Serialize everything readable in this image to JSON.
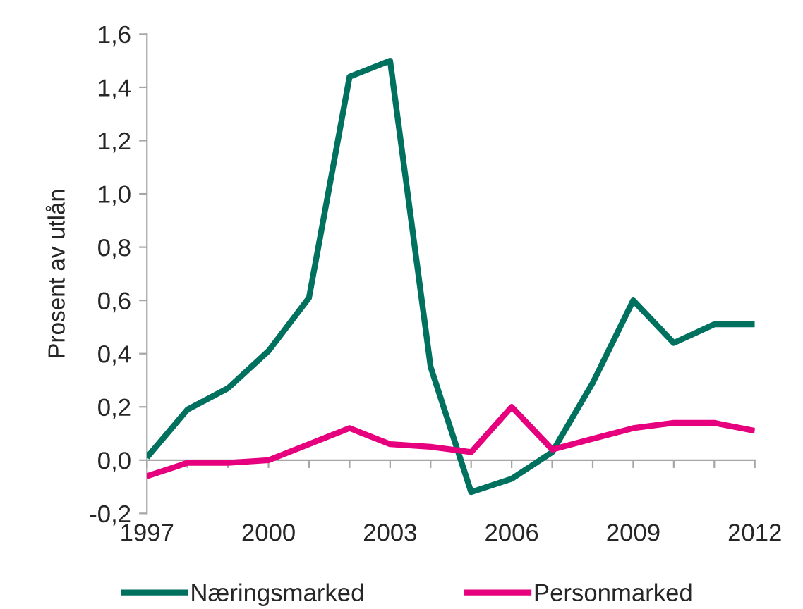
{
  "chart_data": {
    "type": "line",
    "ylabel": "Prosent av utlån",
    "x": [
      1997,
      1998,
      1999,
      2000,
      2001,
      2002,
      2003,
      2004,
      2005,
      2006,
      2007,
      2008,
      2009,
      2010,
      2011,
      2012
    ],
    "xlim": [
      1997,
      2012
    ],
    "xticks": [
      1997,
      {
        "value": 1998,
        "label": null
      },
      {
        "value": 1999,
        "label": null
      },
      2000,
      {
        "value": 2001,
        "label": null
      },
      {
        "value": 2002,
        "label": null
      },
      2003,
      {
        "value": 2004,
        "label": null
      },
      {
        "value": 2005,
        "label": null
      },
      2006,
      {
        "value": 2007,
        "label": null
      },
      {
        "value": 2008,
        "label": null
      },
      2009,
      {
        "value": 2010,
        "label": null
      },
      {
        "value": 2011,
        "label": null
      },
      2012
    ],
    "ylim": [
      -0.2,
      1.6
    ],
    "yticks": [
      {
        "value": -0.2,
        "label": "-0,2"
      },
      {
        "value": 0.0,
        "label": "0,0"
      },
      {
        "value": 0.2,
        "label": "0,2"
      },
      {
        "value": 0.4,
        "label": "0,4"
      },
      {
        "value": 0.6,
        "label": "0,6"
      },
      {
        "value": 0.8,
        "label": "0,8"
      },
      {
        "value": 1.0,
        "label": "1,0"
      },
      {
        "value": 1.2,
        "label": "1,2"
      },
      {
        "value": 1.4,
        "label": "1,4"
      },
      {
        "value": 1.6,
        "label": "1,6"
      }
    ],
    "series": [
      {
        "name": "Næringsmarked",
        "color": "#00705f",
        "values": [
          0.01,
          0.19,
          0.27,
          0.41,
          0.61,
          1.44,
          1.5,
          0.35,
          -0.12,
          -0.07,
          0.03,
          0.29,
          0.6,
          0.44,
          0.51,
          0.51
        ]
      },
      {
        "name": "Personmarked",
        "color": "#e6007e",
        "values": [
          -0.06,
          -0.01,
          -0.01,
          0.0,
          0.06,
          0.12,
          0.06,
          0.05,
          0.03,
          0.2,
          0.04,
          0.08,
          0.12,
          0.14,
          0.14,
          0.11
        ]
      }
    ],
    "legend": "bottom",
    "line_style": "solid"
  }
}
